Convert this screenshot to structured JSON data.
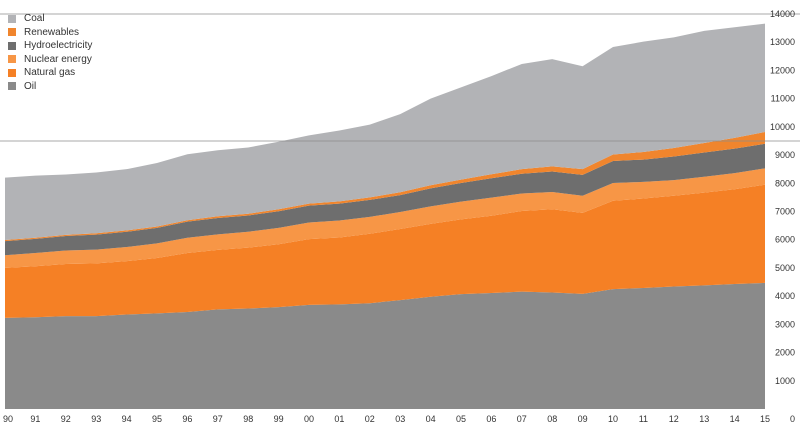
{
  "chart_data": {
    "type": "area",
    "stacked": true,
    "x": [
      "90",
      "91",
      "92",
      "93",
      "94",
      "95",
      "96",
      "97",
      "98",
      "99",
      "00",
      "01",
      "02",
      "03",
      "04",
      "05",
      "06",
      "07",
      "08",
      "09",
      "10",
      "11",
      "12",
      "13",
      "14",
      "15"
    ],
    "series": [
      {
        "name": "Oil",
        "color": "#8a8a8a",
        "values": [
          3230,
          3250,
          3290,
          3290,
          3350,
          3390,
          3440,
          3530,
          3560,
          3610,
          3690,
          3710,
          3750,
          3860,
          3980,
          4070,
          4110,
          4160,
          4130,
          4080,
          4250,
          4290,
          4340,
          4380,
          4430,
          4470
        ]
      },
      {
        "name": "Natural gas",
        "color": "#f58025",
        "values": [
          1770,
          1810,
          1850,
          1870,
          1890,
          1960,
          2090,
          2110,
          2160,
          2230,
          2330,
          2370,
          2460,
          2520,
          2580,
          2650,
          2740,
          2860,
          2950,
          2870,
          3130,
          3170,
          3220,
          3290,
          3360,
          3480
        ]
      },
      {
        "name": "Nuclear energy",
        "color": "#f79646",
        "values": [
          450,
          470,
          480,
          490,
          500,
          520,
          540,
          550,
          560,
          580,
          590,
          600,
          600,
          600,
          620,
          630,
          640,
          620,
          610,
          610,
          630,
          590,
          550,
          560,
          570,
          580
        ]
      },
      {
        "name": "Hydroelectricity",
        "color": "#6e6e6e",
        "values": [
          500,
          500,
          510,
          530,
          540,
          550,
          570,
          580,
          580,
          590,
          600,
          600,
          600,
          600,
          640,
          660,
          690,
          700,
          730,
          740,
          780,
          790,
          840,
          860,
          870,
          870
        ]
      },
      {
        "name": "Renewables",
        "color": "#f0852d",
        "values": [
          40,
          40,
          40,
          50,
          50,
          50,
          50,
          60,
          60,
          70,
          70,
          80,
          90,
          100,
          110,
          120,
          140,
          160,
          180,
          200,
          230,
          270,
          300,
          340,
          380,
          420
        ]
      },
      {
        "name": "Coal",
        "color": "#b2b3b6",
        "values": [
          2210,
          2200,
          2140,
          2150,
          2170,
          2250,
          2340,
          2340,
          2350,
          2390,
          2420,
          2510,
          2580,
          2770,
          3070,
          3270,
          3480,
          3730,
          3800,
          3650,
          3810,
          3910,
          3920,
          3970,
          3920,
          3840
        ]
      }
    ],
    "y_ticks": [
      "14000",
      "13000",
      "12000",
      "11000",
      "10000",
      "9000",
      "8000",
      "7000",
      "6000",
      "5000",
      "4000",
      "3000",
      "2000",
      "1000",
      "0"
    ],
    "ylim": [
      0,
      14000
    ],
    "y_axis_side": "right",
    "reference_lines": [
      14000,
      9500
    ],
    "legend": {
      "placement": "top-left",
      "order": [
        "Coal",
        "Renewables",
        "Hydroelectricity",
        "Nuclear energy",
        "Natural gas",
        "Oil"
      ]
    }
  }
}
